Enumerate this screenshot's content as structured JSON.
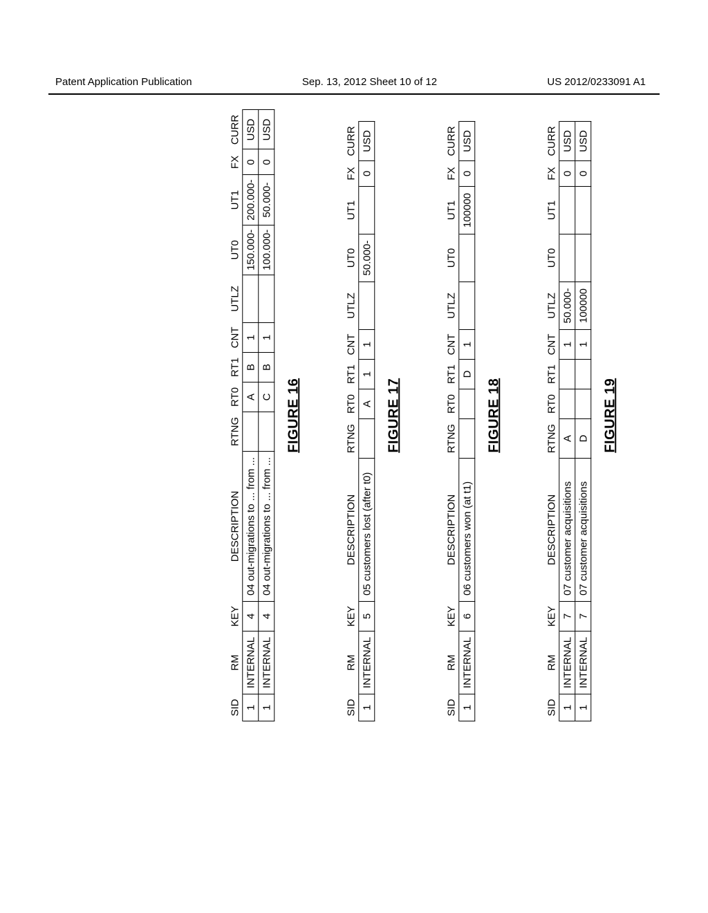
{
  "header": {
    "left": "Patent Application Publication",
    "center": "Sep. 13, 2012  Sheet 10 of 12",
    "right": "US 2012/0233091 A1"
  },
  "columns": [
    "SID",
    "RM",
    "KEY",
    "DESCRIPTION",
    "RTNG",
    "RT0",
    "RT1",
    "CNT",
    "UTLZ",
    "UT0",
    "UT1",
    "FX",
    "CURR"
  ],
  "figures": [
    {
      "caption": "FIGURE 16",
      "rows": [
        {
          "sid": "1",
          "rm": "INTERNAL",
          "key": "4",
          "desc": "04 out-migrations to ... from ...",
          "rtng": "",
          "rt0": "A",
          "rt1": "B",
          "cnt": "1",
          "utlz": "",
          "ut0": "150.000-",
          "ut1": "200.000-",
          "fx": "0",
          "curr": "USD"
        },
        {
          "sid": "1",
          "rm": "INTERNAL",
          "key": "4",
          "desc": "04 out-migrations to ... from ...",
          "rtng": "",
          "rt0": "C",
          "rt1": "B",
          "cnt": "1",
          "utlz": "",
          "ut0": "100.000-",
          "ut1": "50.000-",
          "fx": "0",
          "curr": "USD"
        }
      ]
    },
    {
      "caption": "FIGURE 17",
      "rows": [
        {
          "sid": "1",
          "rm": "INTERNAL",
          "key": "5",
          "desc": "05 customers lost (after t0)",
          "rtng": "",
          "rt0": "A",
          "rt1": "1",
          "cnt": "1",
          "utlz": "",
          "ut0": "50.000-",
          "ut1": "",
          "fx": "0",
          "curr": "USD"
        }
      ]
    },
    {
      "caption": "FIGURE 18",
      "rows": [
        {
          "sid": "1",
          "rm": "INTERNAL",
          "key": "6",
          "desc": "06 customers won (at t1)",
          "rtng": "",
          "rt0": "",
          "rt1": "D",
          "cnt": "1",
          "utlz": "",
          "ut0": "",
          "ut1": "100000",
          "fx": "0",
          "curr": "USD"
        }
      ]
    },
    {
      "caption": "FIGURE 19",
      "rows": [
        {
          "sid": "1",
          "rm": "INTERNAL",
          "key": "7",
          "desc": "07 customer acquisitions",
          "rtng": "A",
          "rt0": "",
          "rt1": "",
          "cnt": "1",
          "utlz": "50.000-",
          "ut0": "",
          "ut1": "",
          "fx": "0",
          "curr": "USD"
        },
        {
          "sid": "1",
          "rm": "INTERNAL",
          "key": "7",
          "desc": "07 customer acquisitions",
          "rtng": "D",
          "rt0": "",
          "rt1": "",
          "cnt": "1",
          "utlz": "100000",
          "ut0": "",
          "ut1": "",
          "fx": "0",
          "curr": "USD"
        }
      ]
    }
  ]
}
